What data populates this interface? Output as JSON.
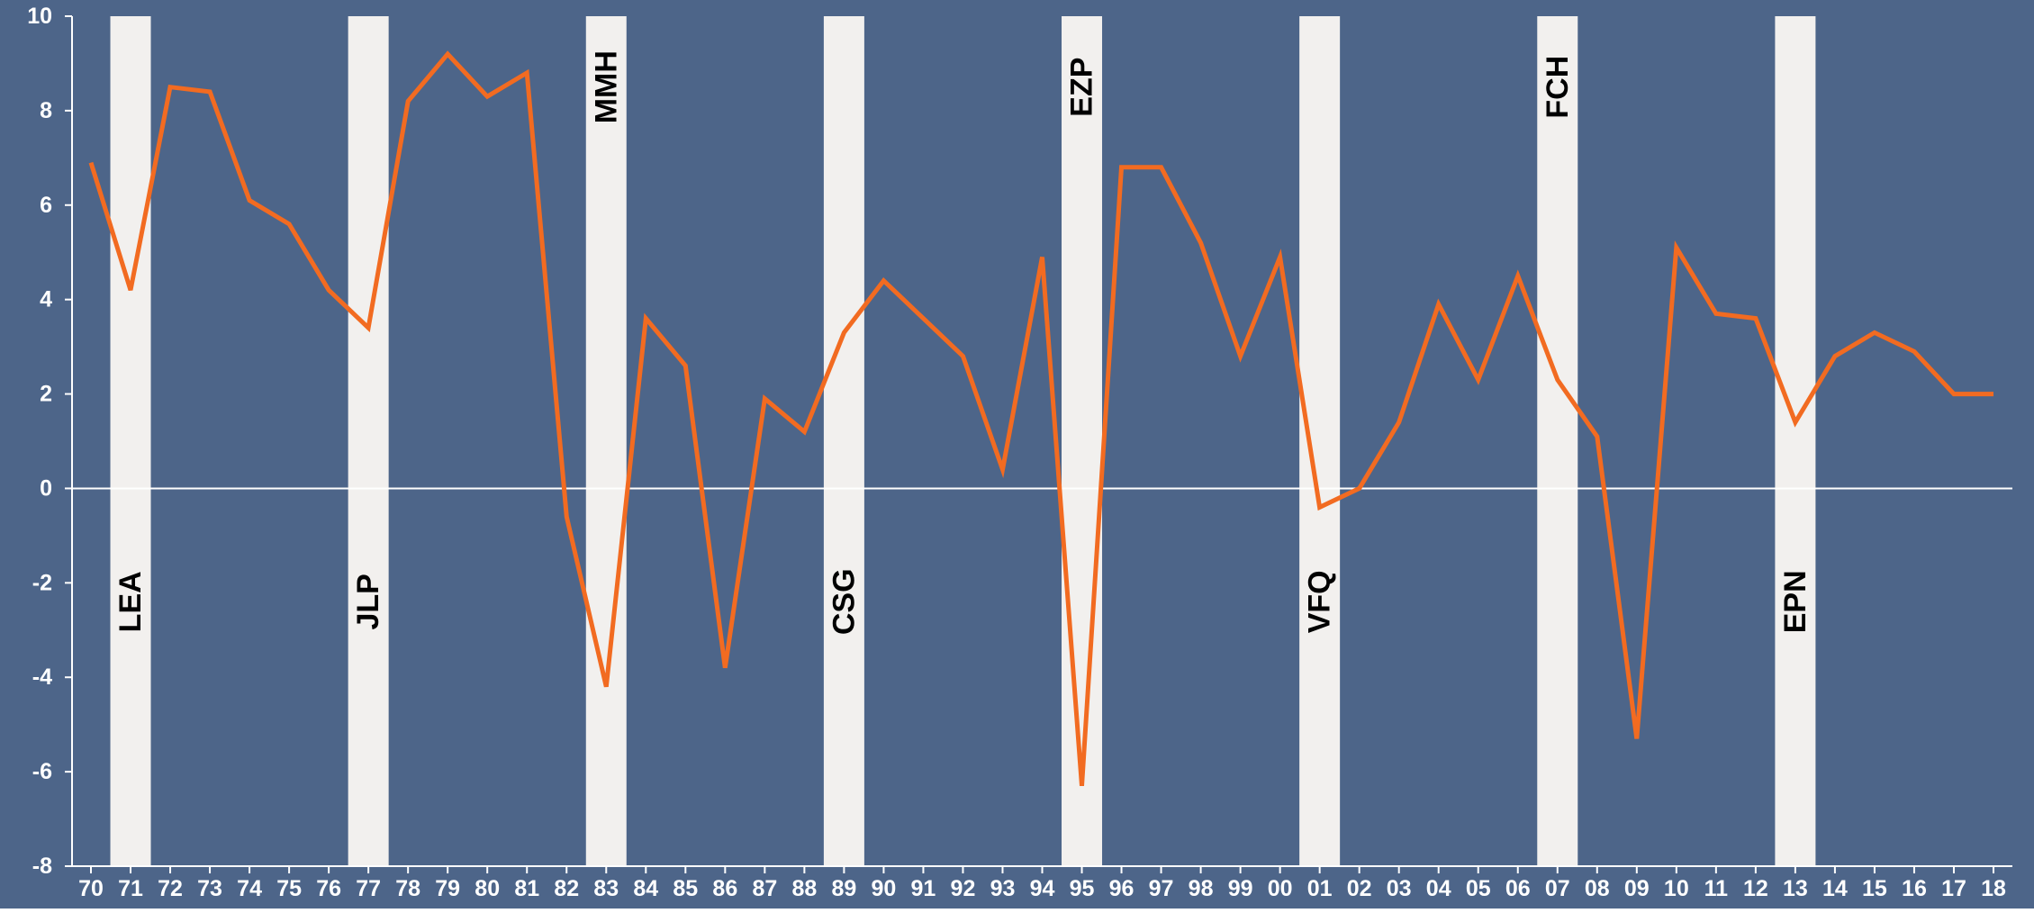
{
  "chart_data": {
    "type": "line",
    "title": "",
    "xlabel": "",
    "ylabel": "",
    "ylim": [
      -8,
      10
    ],
    "y_ticks": [
      -8,
      -6,
      -4,
      -2,
      0,
      2,
      4,
      6,
      8,
      10
    ],
    "categories": [
      "70",
      "71",
      "72",
      "73",
      "74",
      "75",
      "76",
      "77",
      "78",
      "79",
      "80",
      "81",
      "82",
      "83",
      "84",
      "85",
      "86",
      "87",
      "88",
      "89",
      "90",
      "91",
      "92",
      "93",
      "94",
      "95",
      "96",
      "97",
      "98",
      "99",
      "00",
      "01",
      "02",
      "03",
      "04",
      "05",
      "06",
      "07",
      "08",
      "09",
      "10",
      "11",
      "12",
      "13",
      "14",
      "15",
      "16",
      "17",
      "18"
    ],
    "series": [
      {
        "values": [
          6.9,
          4.2,
          8.5,
          8.4,
          6.1,
          5.6,
          4.2,
          3.4,
          8.2,
          9.2,
          8.3,
          8.8,
          -0.6,
          -4.2,
          3.6,
          2.6,
          -3.8,
          1.9,
          1.2,
          3.3,
          4.4,
          3.6,
          2.8,
          0.4,
          4.9,
          -6.3,
          6.8,
          6.8,
          5.2,
          2.8,
          4.9,
          -0.4,
          0.0,
          1.4,
          3.9,
          2.3,
          4.5,
          2.3,
          1.1,
          -5.3,
          5.1,
          3.7,
          3.6,
          1.4,
          2.8,
          3.3,
          2.9,
          2.0,
          2.0
        ]
      }
    ],
    "shaded_periods": [
      {
        "category": "71",
        "label": "LEA",
        "label_position": "low"
      },
      {
        "category": "77",
        "label": "JLP",
        "label_position": "low"
      },
      {
        "category": "83",
        "label": "MMH",
        "label_position": "high"
      },
      {
        "category": "89",
        "label": "CSG",
        "label_position": "low"
      },
      {
        "category": "95",
        "label": "EZP",
        "label_position": "high"
      },
      {
        "category": "01",
        "label": "VFQ",
        "label_position": "low"
      },
      {
        "category": "07",
        "label": "FCH",
        "label_position": "high"
      },
      {
        "category": "13",
        "label": "EPN",
        "label_position": "low"
      }
    ],
    "grid": false,
    "legend": "none",
    "colors": {
      "plot_background": "#4D6589",
      "line": "#F26B21",
      "shaded_band": "#F2F0EE",
      "zero_line": "#FFFFFF",
      "tick_text": "#FFFFFF",
      "band_label_text": "#000000"
    }
  }
}
